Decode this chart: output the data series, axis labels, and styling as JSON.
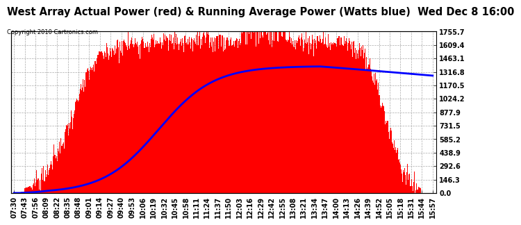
{
  "title": "West Array Actual Power (red) & Running Average Power (Watts blue)  Wed Dec 8 16:00",
  "copyright": "Copyright 2010 Cartronics.com",
  "ylabel_right": [
    "1755.7",
    "1609.4",
    "1463.1",
    "1316.8",
    "1170.5",
    "1024.2",
    "877.9",
    "731.5",
    "585.2",
    "438.9",
    "292.6",
    "146.3",
    "0.0"
  ],
  "ymax": 1755.7,
  "ymin": 0.0,
  "x_labels": [
    "07:30",
    "07:43",
    "07:56",
    "08:09",
    "08:22",
    "08:35",
    "08:48",
    "09:01",
    "09:14",
    "09:27",
    "09:40",
    "09:53",
    "10:06",
    "10:19",
    "10:32",
    "10:45",
    "10:58",
    "11:11",
    "11:24",
    "11:37",
    "11:50",
    "12:03",
    "12:16",
    "12:29",
    "12:42",
    "12:55",
    "13:08",
    "13:21",
    "13:34",
    "13:47",
    "14:00",
    "14:13",
    "14:26",
    "14:39",
    "14:52",
    "15:05",
    "15:18",
    "15:31",
    "15:44",
    "15:57"
  ],
  "background_color": "#ffffff",
  "plot_bg_color": "#ffffff",
  "bar_color": "#ff0000",
  "line_color": "#0000ff",
  "grid_color": "#aaaaaa",
  "title_fontsize": 10.5,
  "tick_fontsize": 7.0
}
